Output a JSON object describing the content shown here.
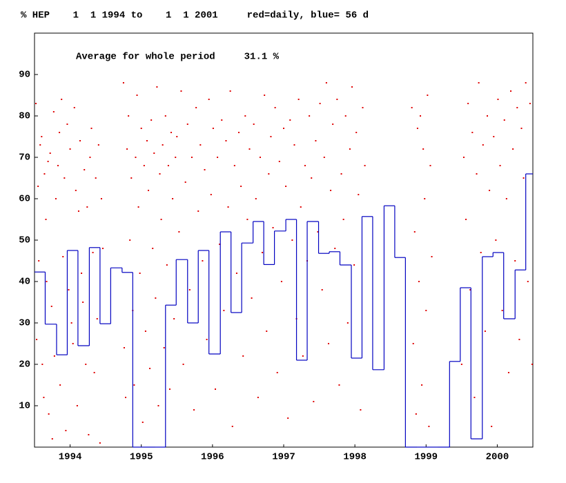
{
  "chart_data": {
    "type": "scatter",
    "title": "% HEP    1  1 1994 to    1  1 2001     red=daily, blue= 56 d",
    "annotation": "Average for whole period     31.1 %",
    "xlim": [
      1994,
      2001
    ],
    "ylim": [
      0,
      100
    ],
    "xticks": [
      {
        "value": 1994.5,
        "label": "1994"
      },
      {
        "value": 1995.5,
        "label": "1995"
      },
      {
        "value": 1996.5,
        "label": "1996"
      },
      {
        "value": 1997.5,
        "label": "1997"
      },
      {
        "value": 1998.5,
        "label": "1998"
      },
      {
        "value": 1999.5,
        "label": "1999"
      },
      {
        "value": 2000.5,
        "label": "2000"
      }
    ],
    "yticks": [
      10,
      20,
      30,
      40,
      50,
      60,
      70,
      80,
      90
    ],
    "series": [
      {
        "style": "points",
        "color": "#e00000",
        "x": [
          1994.02,
          1994.03,
          1994.05,
          1994.06,
          1994.08,
          1994.1,
          1994.11,
          1994.13,
          1994.14,
          1994.16,
          1994.17,
          1994.19,
          1994.2,
          1994.22,
          1994.24,
          1994.25,
          1994.27,
          1994.28,
          1994.3,
          1994.33,
          1994.35,
          1994.36,
          1994.38,
          1994.4,
          1994.42,
          1994.44,
          1994.46,
          1994.48,
          1994.5,
          1994.52,
          1994.54,
          1994.56,
          1994.58,
          1994.6,
          1994.62,
          1994.64,
          1994.66,
          1994.68,
          1994.7,
          1994.72,
          1994.74,
          1994.76,
          1994.78,
          1994.8,
          1994.82,
          1994.84,
          1994.86,
          1994.88,
          1994.9,
          1994.92,
          1994.94,
          1994.96,
          1995.25,
          1995.26,
          1995.28,
          1995.3,
          1995.32,
          1995.34,
          1995.36,
          1995.38,
          1995.4,
          1995.42,
          1995.44,
          1995.46,
          1995.48,
          1995.5,
          1995.52,
          1995.54,
          1995.56,
          1995.58,
          1995.6,
          1995.62,
          1995.64,
          1995.66,
          1995.68,
          1995.7,
          1995.72,
          1995.74,
          1995.76,
          1995.78,
          1995.8,
          1995.82,
          1995.84,
          1995.86,
          1995.88,
          1995.9,
          1995.92,
          1995.94,
          1995.96,
          1995.98,
          1996.0,
          1996.03,
          1996.06,
          1996.09,
          1996.12,
          1996.15,
          1996.18,
          1996.21,
          1996.24,
          1996.27,
          1996.3,
          1996.33,
          1996.36,
          1996.39,
          1996.42,
          1996.45,
          1996.48,
          1996.51,
          1996.54,
          1996.57,
          1996.6,
          1996.63,
          1996.66,
          1996.69,
          1996.72,
          1996.75,
          1996.78,
          1996.81,
          1996.84,
          1996.87,
          1996.9,
          1996.93,
          1996.96,
          1996.99,
          1997.02,
          1997.05,
          1997.08,
          1997.11,
          1997.14,
          1997.17,
          1997.2,
          1997.23,
          1997.26,
          1997.29,
          1997.32,
          1997.35,
          1997.38,
          1997.41,
          1997.44,
          1997.47,
          1997.5,
          1997.53,
          1997.56,
          1997.59,
          1997.62,
          1997.65,
          1997.68,
          1997.71,
          1997.74,
          1997.77,
          1997.8,
          1997.83,
          1997.86,
          1997.89,
          1997.92,
          1997.95,
          1997.98,
          1998.01,
          1998.04,
          1998.07,
          1998.1,
          1998.13,
          1998.16,
          1998.19,
          1998.22,
          1998.25,
          1998.28,
          1998.31,
          1998.34,
          1998.37,
          1998.4,
          1998.43,
          1998.46,
          1998.49,
          1998.52,
          1998.55,
          1998.58,
          1998.61,
          1998.64,
          1999.3,
          1999.32,
          1999.34,
          1999.36,
          1999.38,
          1999.4,
          1999.42,
          1999.44,
          1999.46,
          1999.48,
          1999.5,
          1999.52,
          1999.54,
          1999.56,
          1999.58,
          2000.0,
          2000.03,
          2000.06,
          2000.09,
          2000.12,
          2000.15,
          2000.18,
          2000.21,
          2000.24,
          2000.27,
          2000.3,
          2000.33,
          2000.36,
          2000.39,
          2000.42,
          2000.45,
          2000.48,
          2000.51,
          2000.54,
          2000.57,
          2000.6,
          2000.63,
          2000.66,
          2000.69,
          2000.72,
          2000.75,
          2000.78,
          2000.81,
          2000.84,
          2000.87,
          2000.9,
          2000.93,
          2000.96,
          2000.99
        ],
        "values": [
          83,
          26,
          63,
          45,
          73,
          75,
          20,
          12,
          66,
          55,
          40,
          69,
          8,
          71,
          34,
          2,
          81,
          22,
          60,
          68,
          76,
          15,
          84,
          46,
          65,
          4,
          78,
          38,
          72,
          30,
          25,
          82,
          62,
          10,
          57,
          74,
          42,
          35,
          67,
          20,
          58,
          3,
          70,
          77,
          47,
          18,
          65,
          31,
          73,
          1,
          60,
          48,
          88,
          24,
          12,
          72,
          80,
          50,
          65,
          33,
          15,
          70,
          85,
          58,
          42,
          77,
          6,
          68,
          28,
          74,
          62,
          19,
          79,
          48,
          71,
          36,
          87,
          10,
          66,
          55,
          73,
          24,
          80,
          44,
          68,
          14,
          76,
          60,
          31,
          70,
          75,
          52,
          86,
          20,
          64,
          78,
          38,
          70,
          9,
          82,
          57,
          73,
          45,
          67,
          26,
          84,
          61,
          77,
          14,
          70,
          49,
          79,
          33,
          74,
          58,
          86,
          5,
          68,
          42,
          76,
          63,
          22,
          80,
          55,
          72,
          36,
          78,
          60,
          12,
          70,
          47,
          85,
          28,
          66,
          75,
          53,
          82,
          18,
          69,
          40,
          77,
          63,
          7,
          79,
          50,
          73,
          31,
          84,
          58,
          22,
          68,
          45,
          80,
          65,
          11,
          74,
          52,
          83,
          38,
          70,
          88,
          25,
          62,
          78,
          48,
          84,
          15,
          66,
          55,
          80,
          30,
          72,
          87,
          44,
          76,
          61,
          9,
          82,
          68,
          82,
          25,
          52,
          8,
          77,
          40,
          80,
          15,
          72,
          60,
          33,
          85,
          5,
          68,
          46,
          20,
          70,
          55,
          83,
          38,
          76,
          12,
          66,
          88,
          47,
          73,
          28,
          80,
          62,
          5,
          75,
          50,
          84,
          68,
          33,
          79,
          60,
          18,
          86,
          72,
          45,
          82,
          26,
          77,
          65,
          88,
          40,
          83,
          20
        ]
      },
      {
        "style": "steps",
        "color": "#0000c0",
        "x": [
          1994.0,
          1994.15,
          1994.31,
          1994.46,
          1994.61,
          1994.77,
          1994.92,
          1995.07,
          1995.23,
          1995.38,
          1995.53,
          1995.69,
          1995.84,
          1995.99,
          1996.15,
          1996.3,
          1996.45,
          1996.61,
          1996.76,
          1996.91,
          1997.07,
          1997.22,
          1997.37,
          1997.53,
          1997.68,
          1997.83,
          1997.99,
          1998.14,
          1998.29,
          1998.45,
          1998.6,
          1998.75,
          1998.91,
          1999.06,
          1999.21,
          1999.37,
          1999.52,
          1999.67,
          1999.83,
          1999.98,
          2000.13,
          2000.29,
          2000.44,
          2000.59,
          2000.75,
          2000.9
        ],
        "values": [
          42.3,
          29.7,
          22.3,
          47.5,
          24.5,
          48.2,
          29.8,
          43.3,
          42.2,
          0,
          0,
          0,
          34.3,
          45.3,
          30,
          47.5,
          22.5,
          52,
          32.5,
          49.3,
          54.5,
          44.1,
          52.2,
          55,
          21,
          54.5,
          46.8,
          47.2,
          44,
          21.5,
          55.7,
          18.7,
          58.3,
          45.8,
          0,
          0,
          0,
          0,
          20.7,
          38.5,
          2,
          46,
          47,
          31,
          42.8,
          66
        ]
      }
    ]
  }
}
